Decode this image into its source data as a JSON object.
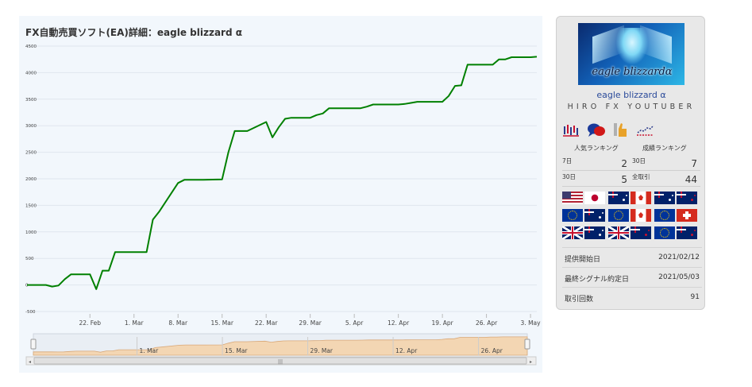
{
  "chart": {
    "title": "FX自動売買ソフト(EA)詳細：eagle blizzard α"
  },
  "chart_data": {
    "type": "line",
    "series": [
      {
        "color": "#008000",
        "points": [
          [
            "2021-02-12",
            0
          ],
          [
            "2021-02-15",
            0
          ],
          [
            "2021-02-16",
            -30
          ],
          [
            "2021-02-17",
            -10
          ],
          [
            "2021-02-18",
            110
          ],
          [
            "2021-02-19",
            200
          ],
          [
            "2021-02-22",
            200
          ],
          [
            "2021-02-23",
            -80
          ],
          [
            "2021-02-24",
            270
          ],
          [
            "2021-02-25",
            270
          ],
          [
            "2021-02-26",
            620
          ],
          [
            "2021-03-01",
            620
          ],
          [
            "2021-03-02",
            620
          ],
          [
            "2021-03-03",
            620
          ],
          [
            "2021-03-04",
            1230
          ],
          [
            "2021-03-05",
            1380
          ],
          [
            "2021-03-08",
            1920
          ],
          [
            "2021-03-09",
            1980
          ],
          [
            "2021-03-10",
            1980
          ],
          [
            "2021-03-11",
            1980
          ],
          [
            "2021-03-12",
            1980
          ],
          [
            "2021-03-15",
            1990
          ],
          [
            "2021-03-16",
            2500
          ],
          [
            "2021-03-17",
            2900
          ],
          [
            "2021-03-18",
            2900
          ],
          [
            "2021-03-19",
            2900
          ],
          [
            "2021-03-22",
            3070
          ],
          [
            "2021-03-23",
            2780
          ],
          [
            "2021-03-24",
            2970
          ],
          [
            "2021-03-25",
            3130
          ],
          [
            "2021-03-26",
            3150
          ],
          [
            "2021-03-29",
            3150
          ],
          [
            "2021-03-30",
            3200
          ],
          [
            "2021-03-31",
            3230
          ],
          [
            "2021-04-01",
            3330
          ],
          [
            "2021-04-02",
            3330
          ],
          [
            "2021-04-05",
            3330
          ],
          [
            "2021-04-06",
            3330
          ],
          [
            "2021-04-07",
            3360
          ],
          [
            "2021-04-08",
            3400
          ],
          [
            "2021-04-09",
            3400
          ],
          [
            "2021-04-12",
            3400
          ],
          [
            "2021-04-13",
            3410
          ],
          [
            "2021-04-14",
            3430
          ],
          [
            "2021-04-15",
            3450
          ],
          [
            "2021-04-16",
            3450
          ],
          [
            "2021-04-19",
            3450
          ],
          [
            "2021-04-20",
            3560
          ],
          [
            "2021-04-21",
            3750
          ],
          [
            "2021-04-22",
            3760
          ],
          [
            "2021-04-23",
            4150
          ],
          [
            "2021-04-26",
            4150
          ],
          [
            "2021-04-27",
            4150
          ],
          [
            "2021-04-28",
            4250
          ],
          [
            "2021-04-29",
            4250
          ],
          [
            "2021-04-30",
            4290
          ],
          [
            "2021-05-03",
            4290
          ],
          [
            "2021-05-04",
            4300
          ]
        ]
      }
    ],
    "x_tick_labels": [
      "22. Feb",
      "1. Mar",
      "8. Mar",
      "15. Mar",
      "22. Mar",
      "29. Mar",
      "5. Apr",
      "12. Apr",
      "19. Apr",
      "26. Apr",
      "3. May"
    ],
    "y_tick_labels": [
      "-500",
      "0",
      "500",
      "1000",
      "1500",
      "2000",
      "2500",
      "3000",
      "3500",
      "4000",
      "4500"
    ],
    "ylim": [
      -500,
      4500
    ],
    "navigator_tick_labels": [
      "1. Mar",
      "15. Mar",
      "29. Mar",
      "12. Apr",
      "26. Apr"
    ],
    "grid": "horizontal"
  },
  "profile": {
    "logo_text": "eagle blizzardα",
    "ea_name": "eagle blizzard α",
    "author": "HIRO FX YOUTUBER",
    "icons": [
      "candlestick-chart-icon",
      "speech-bubble-icon",
      "thumbs-up-icon",
      "line-chart-icon"
    ]
  },
  "ranking": {
    "popular_label": "人気ランキング",
    "performance_label": "成績ランキング",
    "rows": [
      {
        "left_label": "7日",
        "left_value": "2",
        "right_label": "30日",
        "right_value": "7"
      },
      {
        "left_label": "30日",
        "left_value": "5",
        "right_label": "全取引",
        "right_value": "44"
      }
    ]
  },
  "currency_pairs": [
    [
      "us",
      "jp"
    ],
    [
      "au",
      "ca"
    ],
    [
      "au",
      "nz"
    ],
    [
      "eu",
      "au"
    ],
    [
      "eu",
      "ca"
    ],
    [
      "eu",
      "ch"
    ],
    [
      "gb",
      "au"
    ],
    [
      "gb",
      "nz"
    ],
    [
      "eu",
      "nz"
    ]
  ],
  "info": [
    {
      "label": "提供開始日",
      "value": "2021/02/12"
    },
    {
      "label": "最終シグナル約定日",
      "value": "2021/05/03"
    },
    {
      "label": "取引回数",
      "value": "91"
    }
  ]
}
